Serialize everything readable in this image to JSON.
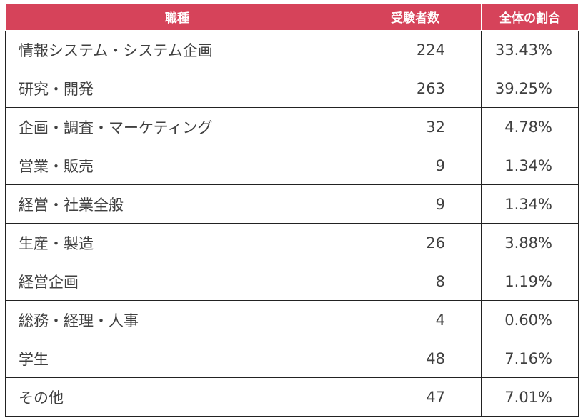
{
  "header": {
    "job": "職種",
    "count": "受験者数",
    "ratio": "全体の割合"
  },
  "colors": {
    "header_bg": "#d6435a",
    "header_text": "#ffffff",
    "body_text": "#404040",
    "border": "#222222"
  },
  "rows": [
    {
      "job": "情報システム・システム企画",
      "count": "224",
      "ratio": "33.43%"
    },
    {
      "job": "研究・開発",
      "count": "263",
      "ratio": "39.25%"
    },
    {
      "job": "企画・調査・マーケティング",
      "count": "32",
      "ratio": "4.78%"
    },
    {
      "job": "営業・販売",
      "count": "9",
      "ratio": "1.34%"
    },
    {
      "job": "経営・社業全般",
      "count": "9",
      "ratio": "1.34%"
    },
    {
      "job": "生産・製造",
      "count": "26",
      "ratio": "3.88%"
    },
    {
      "job": "経営企画",
      "count": "8",
      "ratio": "1.19%"
    },
    {
      "job": "総務・経理・人事",
      "count": "4",
      "ratio": "0.60%"
    },
    {
      "job": "学生",
      "count": "48",
      "ratio": "7.16%"
    },
    {
      "job": "その他",
      "count": "47",
      "ratio": "7.01%"
    }
  ]
}
